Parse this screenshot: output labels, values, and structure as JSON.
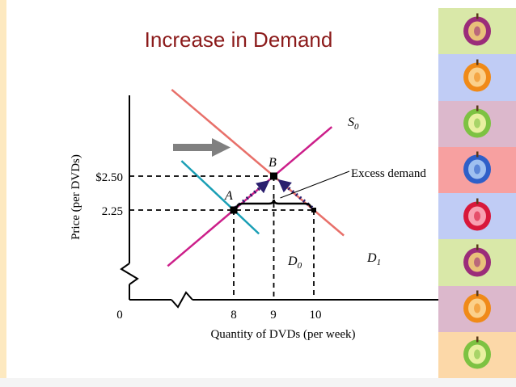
{
  "slide": {
    "title": "Increase in Demand"
  },
  "chart_data": {
    "type": "line",
    "xlabel": "Quantity of DVDs (per week)",
    "ylabel": "Price (per DVDs)",
    "x_ticks": [
      {
        "value": 0,
        "label": "0"
      },
      {
        "value": 8,
        "label": "8"
      },
      {
        "value": 9,
        "label": "9"
      },
      {
        "value": 10,
        "label": "10"
      }
    ],
    "y_ticks": [
      {
        "value": 2.25,
        "label": "2.25"
      },
      {
        "value": 2.5,
        "label": "$2.50"
      }
    ],
    "series": [
      {
        "name": "S",
        "subscript": "0",
        "color": "#cc1f8a",
        "points": [
          [
            8,
            2.25
          ],
          [
            9,
            2.5
          ]
        ]
      },
      {
        "name": "D",
        "subscript": "0",
        "color": "#1a9fb5",
        "points": [
          [
            7.1,
            2.5
          ],
          [
            8,
            2.25
          ]
        ]
      },
      {
        "name": "D",
        "subscript": "1",
        "color": "#e8706a",
        "points": [
          [
            9,
            2.5
          ],
          [
            10,
            2.25
          ]
        ]
      }
    ],
    "points": [
      {
        "label": "A",
        "x": 8,
        "y": 2.25
      },
      {
        "label": "B",
        "x": 9,
        "y": 2.5
      }
    ],
    "annotations": [
      {
        "text": "Excess demand",
        "from_x": 8,
        "to_x": 10,
        "at_y": 2.25
      }
    ],
    "shift_arrow_color": "#808080",
    "dotted_path_color": "#2a1f6e"
  },
  "tile_strip": {
    "colors": [
      "#d9e8a8",
      "#c0ccf5",
      "#dcb8cc",
      "#f7a0a0",
      "#c0ccf5",
      "#d9e8a8",
      "#dcb8cc",
      "#fcd8a8"
    ],
    "icons": [
      "apple-slice-icon",
      "orange-slice-icon",
      "green-fruit-icon",
      "blue-fruit-icon",
      "red-fruit-icon",
      "apple-slice-icon",
      "orange-slice-icon",
      "green-fruit-icon"
    ]
  }
}
